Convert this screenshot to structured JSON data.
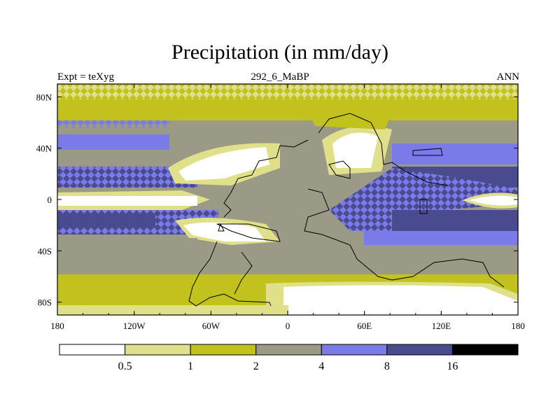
{
  "title": "Precipitation (in mm/day)",
  "left_string": "Expt = teXyg",
  "center_string": "292_6_MaBP",
  "right_string": "ANN",
  "x_ticks": [
    "180",
    "120W",
    "60W",
    "0",
    "60E",
    "120E",
    "180"
  ],
  "y_ticks": [
    "80N",
    "40N",
    "0",
    "40S",
    "80S"
  ],
  "colorbar": {
    "colors": [
      "#ffffff",
      "#e0e08a",
      "#c2c21e",
      "#9a9a86",
      "#7a7ae8",
      "#4a4a8e",
      "#000000"
    ],
    "labels": [
      "0.5",
      "1",
      "2",
      "4",
      "8",
      "16"
    ]
  },
  "colors": {
    "white": "#ffffff",
    "pale_yellow": "#e0e08a",
    "olive": "#c2c21e",
    "gray": "#9a9a86",
    "blue": "#7a7ae8",
    "dark_blue": "#4a4a8e"
  }
}
